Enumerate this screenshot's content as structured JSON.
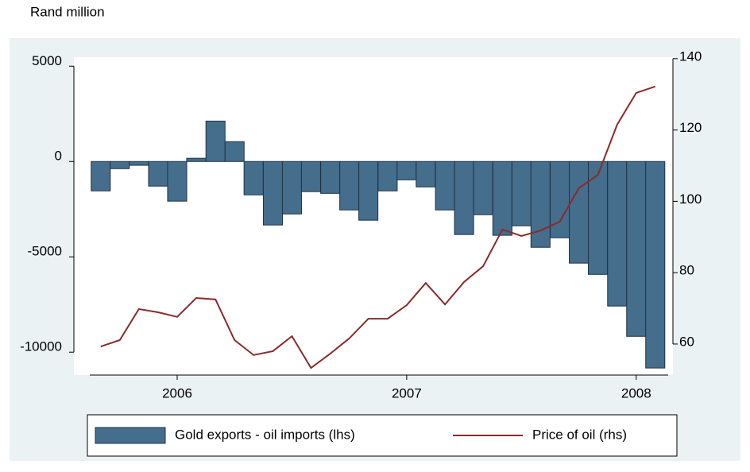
{
  "chart_data": {
    "type": "bar",
    "ylabel": "Rand million",
    "x": [
      2005.667,
      2005.75,
      2005.833,
      2005.917,
      2006,
      2006.083,
      2006.167,
      2006.25,
      2006.333,
      2006.417,
      2006.5,
      2006.583,
      2006.667,
      2006.75,
      2006.833,
      2006.917,
      2007,
      2007.083,
      2007.167,
      2007.25,
      2007.333,
      2007.417,
      2007.5,
      2007.583,
      2007.667,
      2007.75,
      2007.833,
      2007.917,
      2008,
      2008.083
    ],
    "xlim": [
      2005.55,
      2008.16
    ],
    "xticks": [
      2006,
      2007,
      2008
    ],
    "ylim": [
      -11200,
      5470
    ],
    "yticks": [
      -10000,
      -5000,
      0,
      5000
    ],
    "y2lim": [
      51.3,
      140.4
    ],
    "y2ticks": [
      60,
      80,
      100,
      120,
      140
    ],
    "legend": "bottom",
    "series": [
      {
        "name": "Gold exports - oil imports (lhs)",
        "type": "bar",
        "color": "#456d8c",
        "values": [
          -1540,
          -375,
          -200,
          -1290,
          -2080,
          170,
          2120,
          1040,
          -1750,
          -3330,
          -2750,
          -1580,
          -1670,
          -2540,
          -3080,
          -1540,
          -960,
          -1330,
          -2540,
          -3830,
          -2790,
          -3870,
          -3370,
          -4500,
          -4000,
          -5330,
          -5920,
          -7580,
          -9170,
          -10830
        ]
      },
      {
        "name": "Price of oil (rhs)",
        "type": "line",
        "axis": "y2",
        "color": "#8b2a2a",
        "values": [
          59.3,
          61.1,
          69.8,
          68.9,
          67.6,
          72.9,
          72.5,
          61.1,
          56.9,
          58.0,
          62.2,
          53.3,
          57.3,
          61.6,
          67.1,
          67.1,
          70.9,
          77.1,
          71.1,
          77.4,
          81.8,
          92.1,
          90.3,
          91.8,
          94.3,
          103.7,
          107.4,
          121.5,
          130.4,
          132.2
        ]
      }
    ]
  }
}
